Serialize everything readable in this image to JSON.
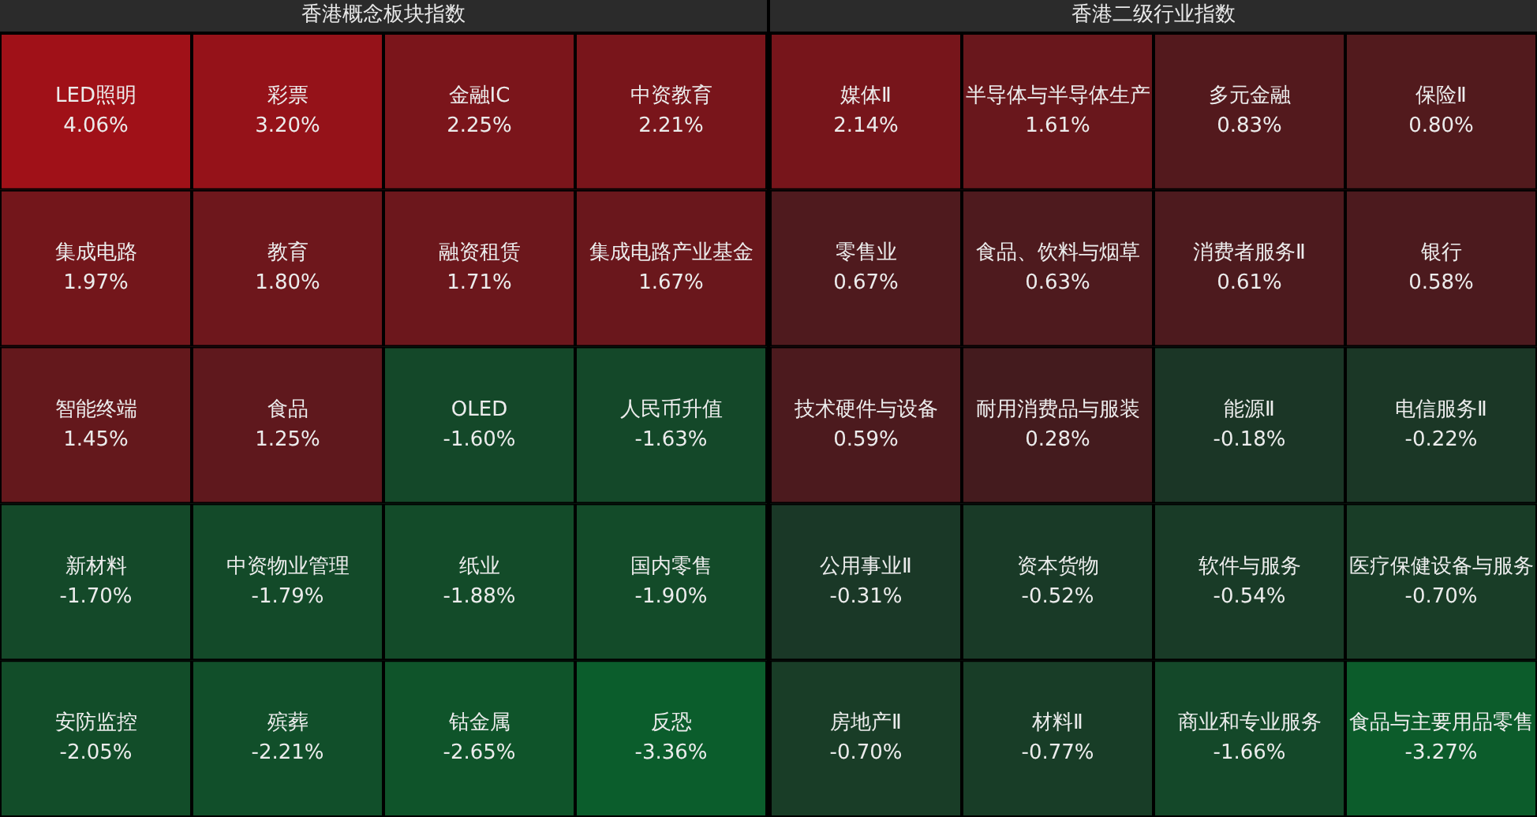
{
  "chart_data": [
    {
      "type": "other",
      "title": "香港概念板块指数",
      "categories": [
        "LED照明",
        "彩票",
        "金融IC",
        "中资教育",
        "集成电路",
        "教育",
        "融资租赁",
        "集成电路产业基金",
        "智能终端",
        "食品",
        "OLED",
        "人民币升值",
        "新材料",
        "中资物业管理",
        "纸业",
        "国内零售",
        "安防监控",
        "殡葬",
        "钴金属",
        "反恐"
      ],
      "values": [
        4.06,
        3.2,
        2.25,
        2.21,
        1.97,
        1.8,
        1.71,
        1.67,
        1.45,
        1.25,
        -1.6,
        -1.63,
        -1.7,
        -1.79,
        -1.88,
        -1.9,
        -2.05,
        -2.21,
        -2.65,
        -3.36
      ],
      "value_labels": [
        "4.06%",
        "3.20%",
        "2.25%",
        "2.21%",
        "1.97%",
        "1.80%",
        "1.71%",
        "1.67%",
        "1.45%",
        "1.25%",
        "-1.60%",
        "-1.63%",
        "-1.70%",
        "-1.79%",
        "-1.88%",
        "-1.90%",
        "-2.05%",
        "-2.21%",
        "-2.65%",
        "-3.36%"
      ]
    },
    {
      "type": "other",
      "title": "香港二级行业指数",
      "categories": [
        "媒体Ⅱ",
        "半导体与半导体生产",
        "多元金融",
        "保险Ⅱ",
        "零售业",
        "食品、饮料与烟草",
        "消费者服务Ⅱ",
        "银行",
        "技术硬件与设备",
        "耐用消费品与服装",
        "能源Ⅱ",
        "电信服务Ⅱ",
        "公用事业Ⅱ",
        "资本货物",
        "软件与服务",
        "医疗保健设备与服务",
        "房地产Ⅱ",
        "材料Ⅱ",
        "商业和专业服务",
        "食品与主要用品零售"
      ],
      "values": [
        2.14,
        1.61,
        0.83,
        0.8,
        0.67,
        0.63,
        0.61,
        0.58,
        0.59,
        0.28,
        -0.18,
        -0.22,
        -0.31,
        -0.52,
        -0.54,
        -0.7,
        -0.7,
        -0.77,
        -1.66,
        -3.27
      ],
      "value_labels": [
        "2.14%",
        "1.61%",
        "0.83%",
        "0.80%",
        "0.67%",
        "0.63%",
        "0.61%",
        "0.58%",
        "0.59%",
        "0.28%",
        "-0.18%",
        "-0.22%",
        "-0.31%",
        "-0.52%",
        "-0.54%",
        "-0.70%",
        "-0.70%",
        "-0.77%",
        "-1.66%",
        "-3.27%"
      ]
    }
  ]
}
